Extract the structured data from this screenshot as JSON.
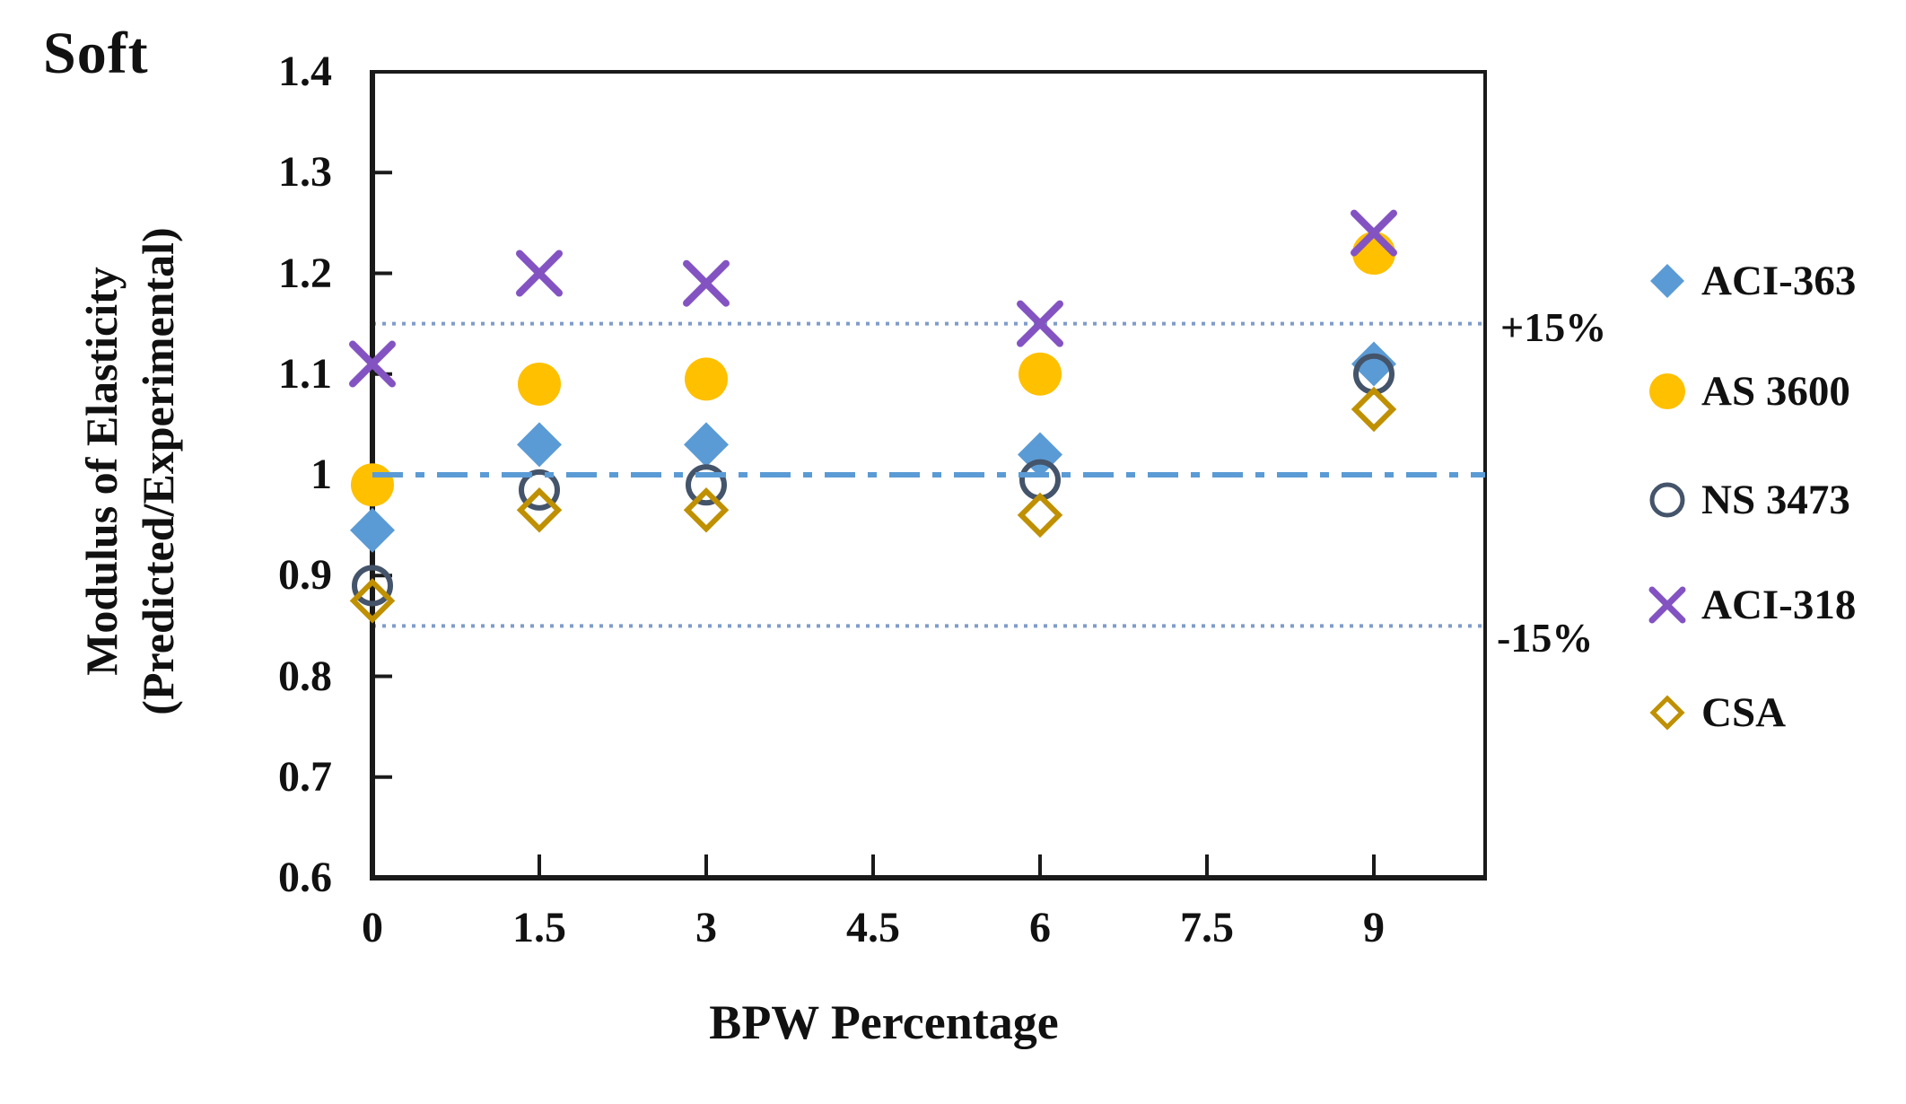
{
  "chart_data": {
    "type": "scatter",
    "title": "Soft",
    "xlabel": "BPW Percentage",
    "ylabel": "Modulus of Elasticity (Predicted/Experimental)",
    "ylabel_lines": [
      "Modulus of Elasticity",
      "(Predicted/Experimental)"
    ],
    "xlim": [
      0,
      10
    ],
    "ylim": [
      0.6,
      1.4
    ],
    "x_tick_values": [
      0,
      1.5,
      3,
      4.5,
      6,
      7.5,
      9
    ],
    "x_tick_labels": [
      "0",
      "1.5",
      "3",
      "4.5",
      "6",
      "7.5",
      "9"
    ],
    "y_tick_values": [
      0.6,
      0.7,
      0.8,
      0.9,
      1,
      1.1,
      1.2,
      1.3,
      1.4
    ],
    "y_tick_labels": [
      "0.6",
      "0.7",
      "0.8",
      "0.9",
      "1",
      "1.1",
      "1.2",
      "1.3",
      "1.4"
    ],
    "x": [
      0,
      1.5,
      3,
      6,
      9
    ],
    "series": [
      {
        "name": "ACI-363",
        "marker": "diamond-filled",
        "color": "#5B9BD5",
        "values": [
          0.945,
          1.03,
          1.03,
          1.02,
          1.11
        ]
      },
      {
        "name": "AS 3600",
        "marker": "circle-filled",
        "color": "#FFC000",
        "values": [
          0.99,
          1.09,
          1.095,
          1.1,
          1.22
        ]
      },
      {
        "name": "NS 3473",
        "marker": "circle-open",
        "color": "#44546A",
        "values": [
          0.89,
          0.985,
          0.99,
          0.995,
          1.1
        ]
      },
      {
        "name": "ACI-318",
        "marker": "x",
        "color": "#8353C2",
        "values": [
          1.11,
          1.2,
          1.19,
          1.15,
          1.24
        ]
      },
      {
        "name": "CSA",
        "marker": "diamond-open",
        "color": "#BF9000",
        "values": [
          0.875,
          0.965,
          0.965,
          0.96,
          1.065
        ]
      }
    ],
    "ref_lines": [
      {
        "value": 1.15,
        "label": "+15%",
        "style": "dotted",
        "color": "#7F9CCB"
      },
      {
        "value": 1.0,
        "label": "",
        "style": "dashdot",
        "color": "#5B9BD5"
      },
      {
        "value": 0.85,
        "label": "-15%",
        "style": "dotted",
        "color": "#7F9CCB"
      }
    ],
    "legend_position": "right",
    "grid": false,
    "frame_color": "#1a1a1a"
  }
}
